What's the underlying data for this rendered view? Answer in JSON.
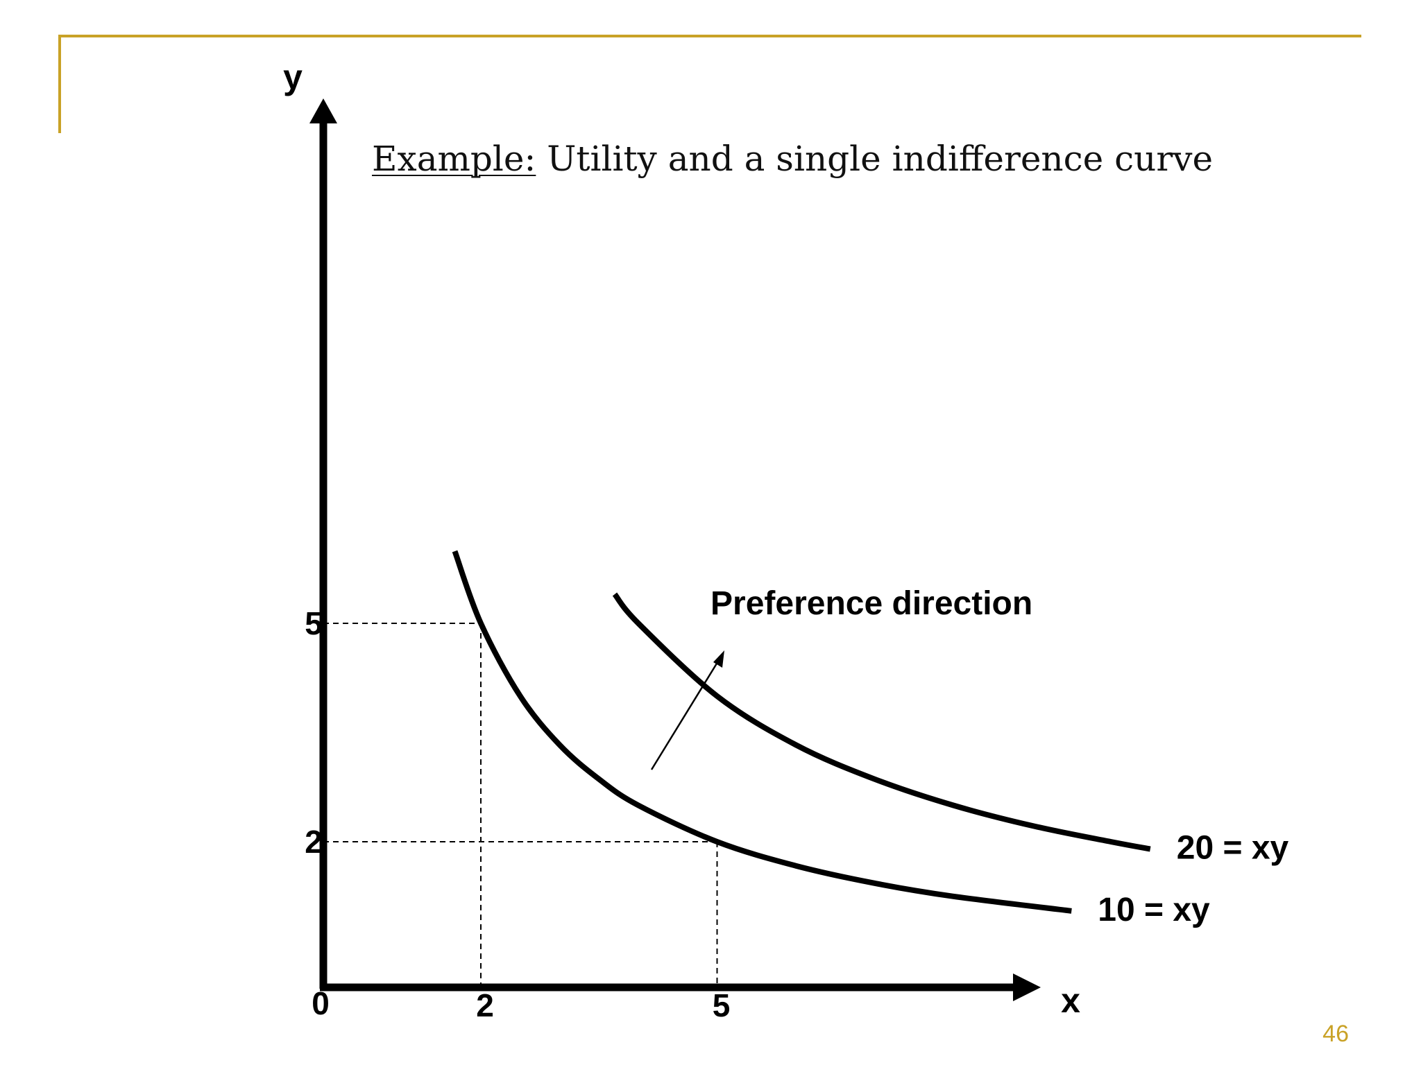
{
  "slide": {
    "title_lead": "Example:",
    "title_rest": " Utility and a single indifference curve",
    "page_number": "46",
    "accent_color": "#C9A227"
  },
  "chart_data": {
    "type": "line",
    "title": "Example: Utility and a single indifference curve",
    "xlabel": "x",
    "ylabel": "y",
    "origin_label": "0",
    "x_ticks": [
      "2",
      "5"
    ],
    "y_ticks": [
      "2",
      "5"
    ],
    "xlim": [
      0,
      15.5
    ],
    "ylim": [
      0,
      15.5
    ],
    "series": [
      {
        "name": "10 = xy",
        "equation": "xy = 10",
        "x": [
          1.67,
          2,
          2.5,
          3,
          3.5,
          4,
          5,
          6,
          7,
          8,
          9.5
        ],
        "y": [
          5.99,
          5,
          4,
          3.33,
          2.86,
          2.5,
          2,
          1.67,
          1.43,
          1.25,
          1.05
        ]
      },
      {
        "name": "20 = xy",
        "equation": "xy = 20",
        "x": [
          3.7,
          4,
          5,
          6,
          7,
          8,
          9,
          10,
          10.5
        ],
        "y": [
          5.4,
          5,
          4,
          3.33,
          2.86,
          2.5,
          2.22,
          2,
          1.9
        ]
      }
    ],
    "reference_points": [
      {
        "x": 2,
        "y": 5
      },
      {
        "x": 5,
        "y": 2
      }
    ],
    "annotation": {
      "text": "Preference direction"
    }
  }
}
